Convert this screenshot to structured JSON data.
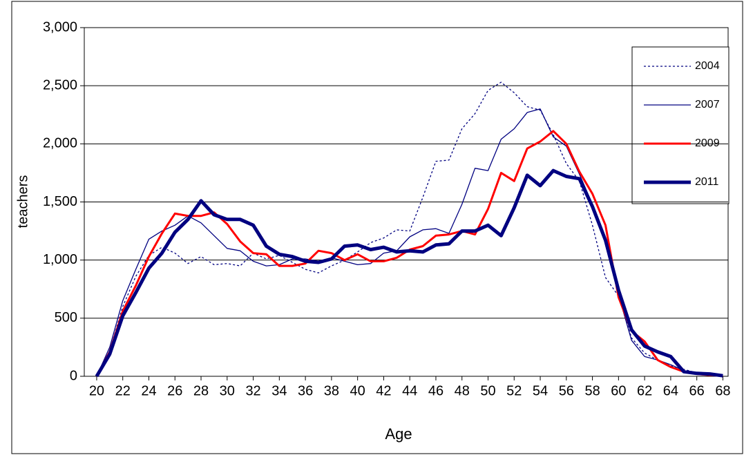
{
  "chart_data": {
    "type": "line",
    "x_label": "Age",
    "y_label": "teachers",
    "x": [
      20,
      21,
      22,
      23,
      24,
      25,
      26,
      27,
      28,
      29,
      30,
      31,
      32,
      33,
      34,
      35,
      36,
      37,
      38,
      39,
      40,
      41,
      42,
      43,
      44,
      45,
      46,
      47,
      48,
      49,
      50,
      51,
      52,
      53,
      54,
      55,
      56,
      57,
      58,
      59,
      60,
      61,
      62,
      63,
      64,
      65,
      66,
      67,
      68
    ],
    "series": [
      {
        "name": "2004",
        "color": "#000080",
        "style": "dotted",
        "weight": "thin",
        "values": [
          0,
          220,
          600,
          860,
          1040,
          1110,
          1060,
          970,
          1030,
          960,
          970,
          950,
          1060,
          1010,
          1040,
          980,
          920,
          890,
          950,
          1000,
          1070,
          1150,
          1190,
          1260,
          1250,
          1540,
          1850,
          1860,
          2130,
          2260,
          2460,
          2530,
          2440,
          2320,
          2290,
          2080,
          1830,
          1680,
          1300,
          850,
          690,
          330,
          200,
          140,
          90,
          60,
          30,
          20,
          10
        ]
      },
      {
        "name": "2007",
        "color": "#000080",
        "style": "solid",
        "weight": "thin",
        "values": [
          0,
          250,
          650,
          920,
          1180,
          1250,
          1300,
          1380,
          1320,
          1210,
          1100,
          1080,
          990,
          950,
          960,
          1010,
          1010,
          990,
          1020,
          990,
          960,
          970,
          1060,
          1080,
          1200,
          1260,
          1270,
          1230,
          1480,
          1790,
          1770,
          2040,
          2130,
          2270,
          2300,
          2060,
          1980,
          1740,
          1480,
          1140,
          700,
          310,
          170,
          140,
          100,
          50,
          30,
          20,
          5
        ]
      },
      {
        "name": "2009",
        "color": "#ff0000",
        "style": "solid",
        "weight": "medium",
        "values": [
          0,
          210,
          560,
          780,
          1030,
          1230,
          1400,
          1380,
          1380,
          1410,
          1310,
          1160,
          1060,
          1050,
          950,
          950,
          970,
          1080,
          1060,
          1000,
          1050,
          990,
          990,
          1020,
          1090,
          1120,
          1210,
          1220,
          1250,
          1220,
          1440,
          1750,
          1680,
          1960,
          2020,
          2110,
          2000,
          1760,
          1570,
          1300,
          680,
          390,
          300,
          140,
          80,
          40,
          20,
          10,
          5
        ]
      },
      {
        "name": "2011",
        "color": "#000080",
        "style": "solid",
        "weight": "thick",
        "values": [
          0,
          190,
          520,
          720,
          930,
          1060,
          1240,
          1350,
          1510,
          1390,
          1350,
          1350,
          1300,
          1120,
          1050,
          1030,
          990,
          980,
          1010,
          1120,
          1130,
          1090,
          1110,
          1070,
          1080,
          1070,
          1130,
          1140,
          1250,
          1250,
          1300,
          1210,
          1450,
          1730,
          1640,
          1770,
          1720,
          1700,
          1460,
          1170,
          740,
          400,
          260,
          210,
          170,
          40,
          25,
          20,
          5
        ]
      }
    ],
    "xlim": [
      19.05,
      68.4
    ],
    "xticks": [
      20,
      22,
      24,
      26,
      28,
      30,
      32,
      34,
      36,
      38,
      40,
      42,
      44,
      46,
      48,
      50,
      52,
      54,
      56,
      58,
      60,
      62,
      64,
      66,
      68
    ],
    "ylim": [
      0,
      3000
    ],
    "yticks": [
      0,
      {
        "value": 500,
        "label": "500"
      },
      {
        "value": 1000,
        "label": "1,000"
      },
      {
        "value": 1500,
        "label": "1,500"
      },
      {
        "value": 2000,
        "label": "2,000"
      },
      {
        "value": 2500,
        "label": "2,500"
      },
      {
        "value": 3000,
        "label": "3,000"
      }
    ],
    "grid": true,
    "legend": "right"
  }
}
